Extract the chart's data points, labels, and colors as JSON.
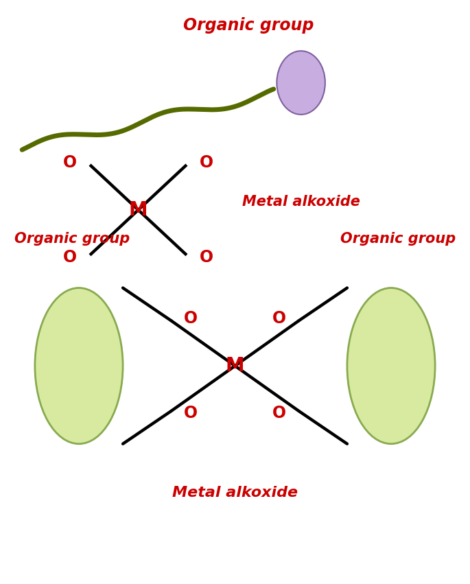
{
  "bg_color": "#ffffff",
  "red_color": "#cc0000",
  "black_color": "#000000",
  "dark_green": "#556b00",
  "purple_ellipse_color": "#c8aee0",
  "purple_ellipse_edge": "#8060a0",
  "green_ellipse_color": "#d8eaa0",
  "green_ellipse_edge": "#88aa50",
  "fig_width": 6.85,
  "fig_height": 8.51,
  "title1": "Organic group",
  "label_metal1": "Metal alkoxide",
  "title2_left": "Organic group",
  "title2_right": "Organic group",
  "label_metal2": "Metal alkoxide"
}
